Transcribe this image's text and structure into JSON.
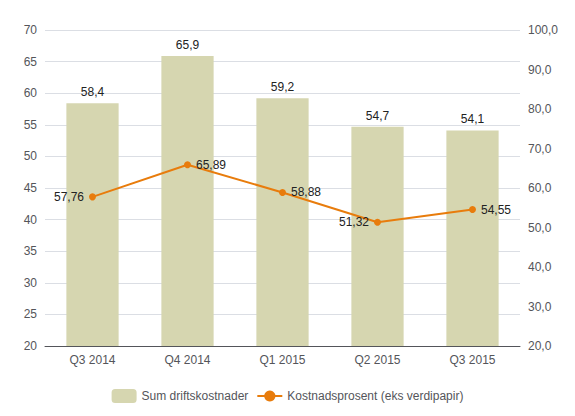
{
  "chart_data": {
    "type": "bar",
    "categories": [
      "Q3 2014",
      "Q4 2014",
      "Q1 2015",
      "Q2 2015",
      "Q3 2015"
    ],
    "series": [
      {
        "name": "Sum driftskostnader",
        "type": "bar",
        "color": "#d6d6b0",
        "values": [
          58.4,
          65.9,
          59.2,
          54.7,
          54.1
        ],
        "value_labels": [
          "58,4",
          "65,9",
          "59,2",
          "54,7",
          "54,1"
        ]
      },
      {
        "name": "Kostnadsprosent (eks verdipapir)",
        "type": "line",
        "axis": "y2",
        "color": "#e87c0c",
        "marker": "circle",
        "values": [
          57.76,
          65.89,
          58.88,
          51.32,
          54.55
        ],
        "value_labels": [
          "57,76",
          "65,89",
          "58,88",
          "51,32",
          "54,55"
        ]
      }
    ],
    "ylim": [
      20,
      70
    ],
    "yticks": [
      20,
      25,
      30,
      35,
      40,
      45,
      50,
      55,
      60,
      65,
      70
    ],
    "y2lim": [
      20,
      100
    ],
    "y2ticks": [
      {
        "value": 20,
        "label": "20,0"
      },
      {
        "value": 30,
        "label": "30,0"
      },
      {
        "value": 40,
        "label": "40,0"
      },
      {
        "value": 50,
        "label": "50,0"
      },
      {
        "value": 60,
        "label": "60,0"
      },
      {
        "value": 70,
        "label": "70,0"
      },
      {
        "value": 80,
        "label": "80,0"
      },
      {
        "value": 90,
        "label": "90,0"
      },
      {
        "value": 100,
        "label": "100,0"
      }
    ],
    "grid": true,
    "legend": "bottom",
    "data_labels": true
  }
}
